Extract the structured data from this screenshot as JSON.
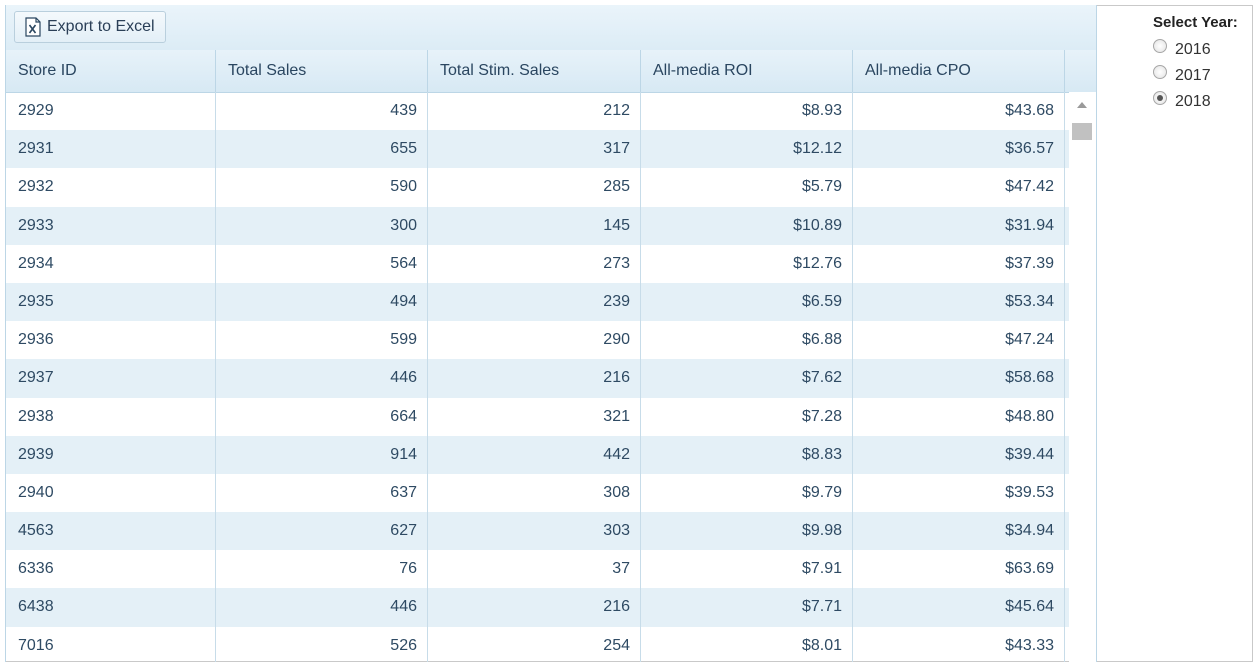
{
  "toolbar": {
    "export_label": "Export to Excel",
    "export_icon": "excel-icon"
  },
  "columns": [
    "Store ID",
    "Total Sales",
    "Total Stim. Sales",
    "All-media ROI",
    "All-media CPO"
  ],
  "rows": [
    [
      "2929",
      "439",
      "212",
      "$8.93",
      "$43.68"
    ],
    [
      "2931",
      "655",
      "317",
      "$12.12",
      "$36.57"
    ],
    [
      "2932",
      "590",
      "285",
      "$5.79",
      "$47.42"
    ],
    [
      "2933",
      "300",
      "145",
      "$10.89",
      "$31.94"
    ],
    [
      "2934",
      "564",
      "273",
      "$12.76",
      "$37.39"
    ],
    [
      "2935",
      "494",
      "239",
      "$6.59",
      "$53.34"
    ],
    [
      "2936",
      "599",
      "290",
      "$6.88",
      "$47.24"
    ],
    [
      "2937",
      "446",
      "216",
      "$7.62",
      "$58.68"
    ],
    [
      "2938",
      "664",
      "321",
      "$7.28",
      "$48.80"
    ],
    [
      "2939",
      "914",
      "442",
      "$8.83",
      "$39.44"
    ],
    [
      "2940",
      "637",
      "308",
      "$9.79",
      "$39.53"
    ],
    [
      "4563",
      "627",
      "303",
      "$9.98",
      "$34.94"
    ],
    [
      "6336",
      "76",
      "37",
      "$7.91",
      "$63.69"
    ],
    [
      "6438",
      "446",
      "216",
      "$7.71",
      "$45.64"
    ],
    [
      "7016",
      "526",
      "254",
      "$8.01",
      "$43.33"
    ]
  ],
  "year_select": {
    "title": "Select Year:",
    "options": [
      "2016",
      "2017",
      "2018"
    ],
    "selected": "2018"
  }
}
